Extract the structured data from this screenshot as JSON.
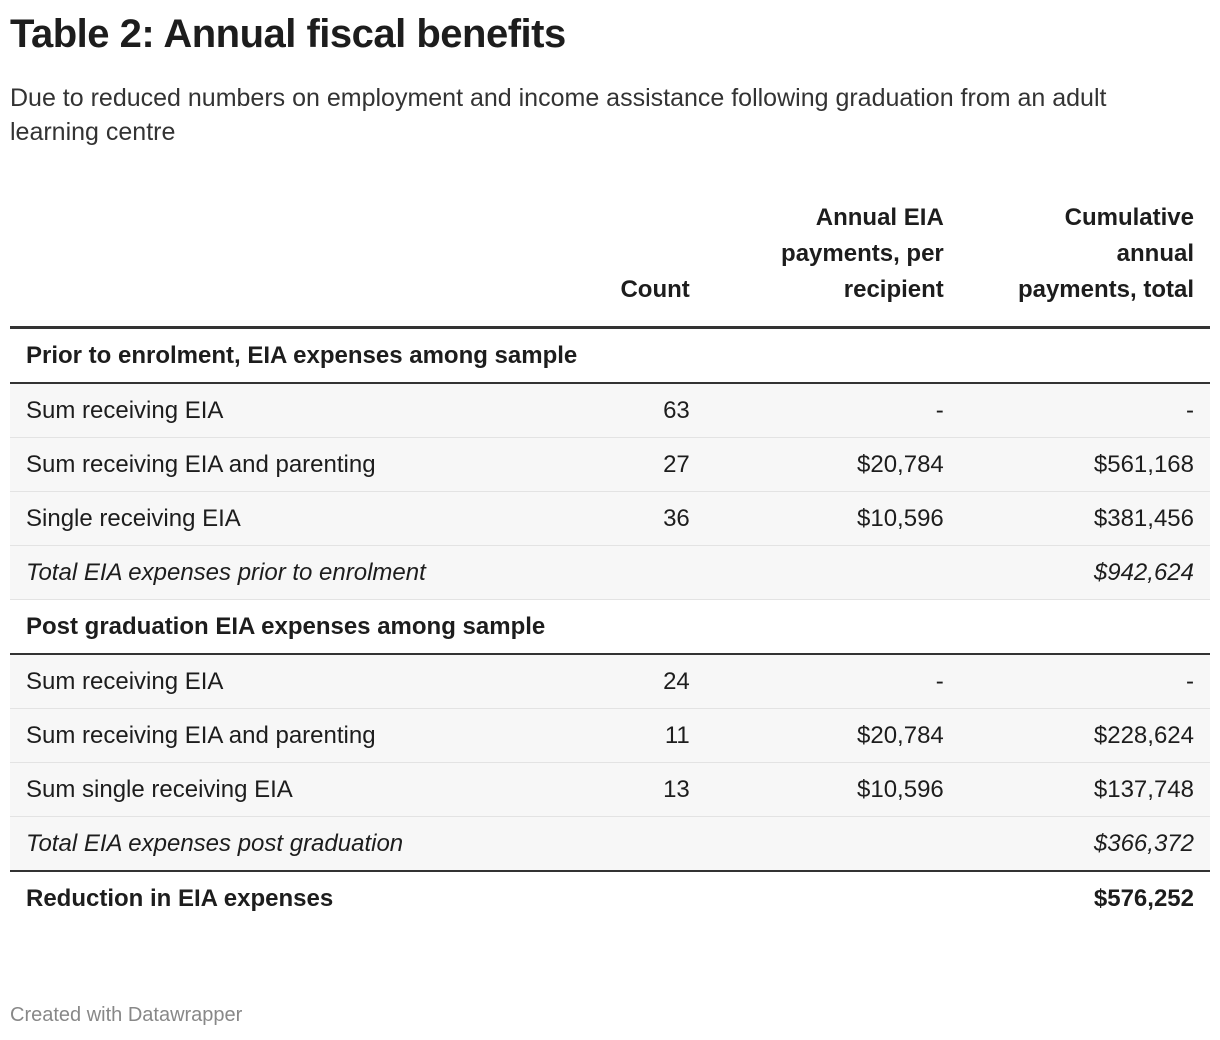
{
  "title": "Table 2: Annual fiscal benefits",
  "subtitle": "Due to reduced numbers on employment and income assistance following graduation from an adult learning centre",
  "footer": "Created with Datawrapper",
  "chart_data": {
    "type": "table",
    "columns": [
      "",
      "Count",
      "Annual EIA payments, per recipient",
      "Cumulative annual payments, total"
    ],
    "rows": [
      {
        "kind": "section",
        "cells": [
          "Prior to enrolment, EIA expenses among sample",
          "",
          "",
          ""
        ]
      },
      {
        "kind": "row",
        "cells": [
          "Sum receiving EIA",
          "63",
          "-",
          "-"
        ]
      },
      {
        "kind": "row",
        "cells": [
          "Sum receiving EIA and parenting",
          "27",
          "$20,784",
          "$561,168"
        ]
      },
      {
        "kind": "row",
        "cells": [
          "Single receiving EIA",
          "36",
          "$10,596",
          "$381,456"
        ]
      },
      {
        "kind": "total",
        "cells": [
          "Total EIA expenses prior to enrolment",
          "",
          "",
          "$942,624"
        ]
      },
      {
        "kind": "section",
        "cells": [
          "Post graduation EIA expenses among sample",
          "",
          "",
          ""
        ]
      },
      {
        "kind": "row",
        "cells": [
          "Sum receiving EIA",
          "24",
          "-",
          "-"
        ]
      },
      {
        "kind": "row",
        "cells": [
          "Sum receiving EIA and parenting",
          "11",
          "$20,784",
          "$228,624"
        ]
      },
      {
        "kind": "row",
        "cells": [
          "Sum single receiving EIA",
          "13",
          "$10,596",
          "$137,748"
        ]
      },
      {
        "kind": "total last",
        "cells": [
          "Total EIA expenses post graduation",
          "",
          "",
          "$366,372"
        ]
      },
      {
        "kind": "grand",
        "cells": [
          "Reduction in EIA expenses",
          "",
          "",
          "$576,252"
        ]
      }
    ]
  }
}
